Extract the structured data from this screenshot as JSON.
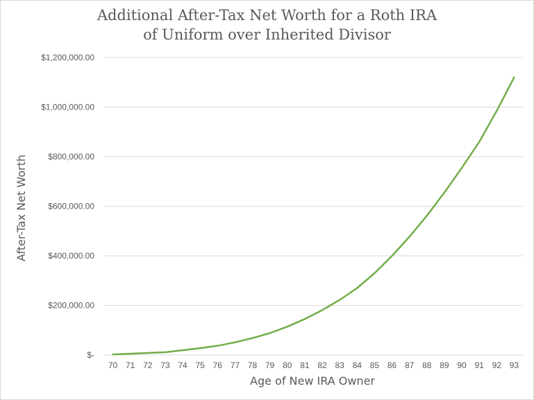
{
  "chart_data": {
    "type": "line",
    "title_line1": "Additional After-Tax Net Worth for a Roth IRA",
    "title_line2": "of Uniform over Inherited Divisor",
    "xlabel": "Age of New IRA Owner",
    "ylabel": "After-Tax Net Worth",
    "ylim": [
      0,
      1200000
    ],
    "y_ticks": [
      0,
      200000,
      400000,
      600000,
      800000,
      1000000,
      1200000
    ],
    "y_tick_labels": [
      "$-",
      "$200,000.00",
      "$400,000.00",
      "$600,000.00",
      "$800,000.00",
      "$1,000,000.00",
      "$1,200,000.00"
    ],
    "grid": "horizontal",
    "x": [
      "70",
      "71",
      "72",
      "73",
      "74",
      "75",
      "76",
      "77",
      "78",
      "79",
      "80",
      "81",
      "82",
      "83",
      "84",
      "85",
      "86",
      "87",
      "88",
      "89",
      "90",
      "91",
      "92",
      "93"
    ],
    "series": [
      {
        "color": "#70ad47",
        "values": [
          2000,
          5000,
          8000,
          11000,
          19000,
          27000,
          37000,
          51000,
          68000,
          88000,
          114000,
          145000,
          181000,
          222000,
          270000,
          330000,
          400000,
          477000,
          562000,
          655000,
          755000,
          860000,
          985000,
          1120000
        ]
      }
    ]
  }
}
